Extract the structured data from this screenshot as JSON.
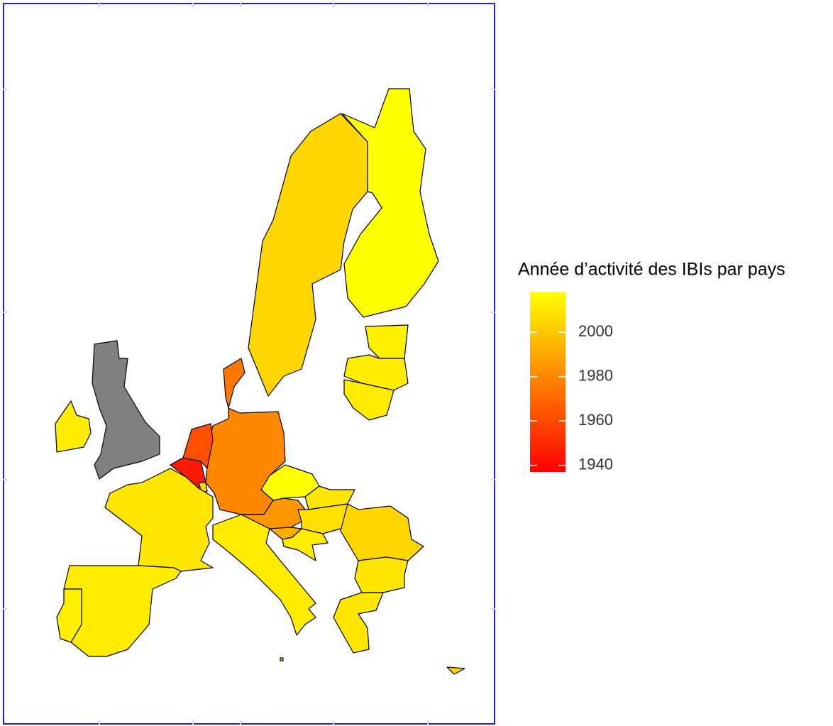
{
  "chart_data": {
    "type": "choropleth",
    "legend_title": "Année d’activité des IBIs par pays",
    "values": [
      2018,
      2005,
      2014,
      2012,
      2012,
      1975,
      1980,
      1962,
      1945,
      2005,
      null,
      2012,
      2010,
      2012,
      2013,
      2012,
      1985,
      2018,
      2010,
      2008,
      1993,
      2012,
      2005,
      2010,
      2010,
      2005,
      2010
    ],
    "lim": [
      1937,
      2018
    ],
    "ticks": [
      1940,
      1960,
      1980,
      2000
    ],
    "colors": [
      "#ff0000",
      "#ffff00"
    ],
    "na_color": "#808080"
  }
}
